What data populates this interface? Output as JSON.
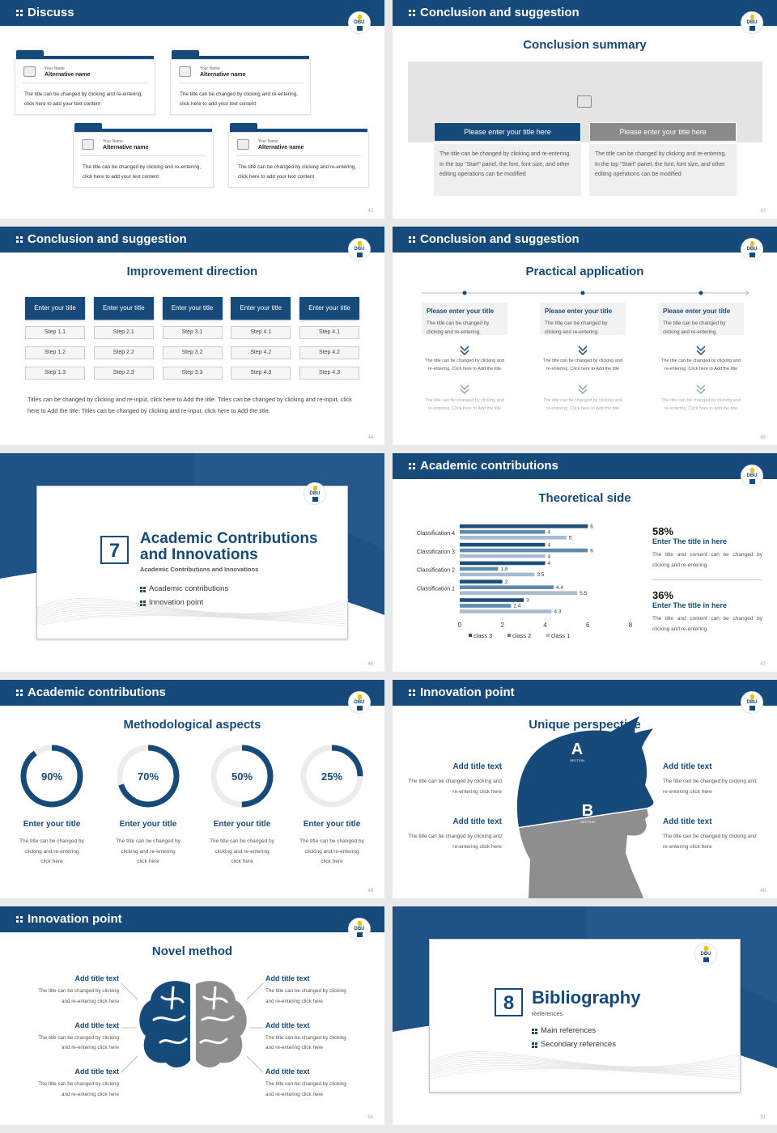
{
  "logo": "DBU",
  "chart_data": {
    "type": "bar",
    "categories": [
      "Classification 4",
      "Classification 3",
      "Classification 2",
      "Classification 1",
      null
    ],
    "series": [
      {
        "name": "class 3",
        "color": "#1f4e79",
        "values": [
          6,
          4,
          4,
          2,
          3
        ]
      },
      {
        "name": "class 2",
        "color": "#5d8aae",
        "values": [
          4,
          6,
          1.8,
          4.4,
          2.4
        ]
      },
      {
        "name": "class 1",
        "color": "#a7bccf",
        "values": [
          5,
          4,
          3.5,
          5.5,
          4.3
        ]
      }
    ],
    "xlim": [
      0,
      8
    ],
    "xticks": [
      0,
      2,
      4,
      6,
      8
    ]
  },
  "slides": [
    {
      "header": "Discuss",
      "cards": [
        {
          "label": "Your Name",
          "name": "Alternative name",
          "text": "The title can be changed by clicking and re-entering, click here to add your text content"
        },
        {
          "label": "Your Name",
          "name": "Alternative name",
          "text": "The title can be changed by clicking and re-entering, click here to add your text content"
        },
        {
          "label": "Your Name",
          "name": "Alternative name",
          "text": "The title can be changed by clicking and re-entering, click here to add your text content"
        },
        {
          "label": "Your Name",
          "name": "Alternative name",
          "text": "The title can be changed by clicking and re-entering, click here to add your text content"
        }
      ],
      "page": "42"
    },
    {
      "header": "Conclusion and suggestion",
      "title": "Conclusion summary",
      "boxes": [
        {
          "label": "Please enter your title here",
          "text": "The title can be changed by clicking and re-entering. In the top \"Start\" panel, the font, font size, and other editing operations can be modified"
        },
        {
          "label": "Please enter your title here",
          "text": "The title can be changed by clicking and re-entering. In the top \"Start\" panel, the font, font size, and other editing operations can be modified"
        }
      ],
      "page": "43"
    },
    {
      "header": "Conclusion and suggestion",
      "title": "Improvement direction",
      "columns": [
        {
          "head": "Enter your title",
          "steps": [
            "Step 1.1",
            "Step 1.2",
            "Step 1.3"
          ]
        },
        {
          "head": "Enter your title",
          "steps": [
            "Step 2.1",
            "Step 2.2",
            "Step 2.3"
          ]
        },
        {
          "head": "Enter your title",
          "steps": [
            "Step 3.1",
            "Step 3.2",
            "Step 3.3"
          ]
        },
        {
          "head": "Enter your title",
          "steps": [
            "Step 4.1",
            "Step 4.2",
            "Step 4.3"
          ]
        },
        {
          "head": "Enter your title",
          "steps": [
            "Step 4.1",
            "Step 4.2",
            "Step 4.3"
          ]
        }
      ],
      "note": "Titles can be changed by clicking and re-input, click here to Add the title. Titles can be changed by clicking and re-input, click here to Add the title. Titles can be changed by clicking and re-input, click here to Add the title.",
      "page": "44"
    },
    {
      "header": "Conclusion and suggestion",
      "title": "Practical application",
      "items": [
        {
          "head": "Please enter your title",
          "text": "The title can be changed by clicking and re-entering.",
          "details": [
            "The title can be changed by clicking and re-entering. Click here to Add the title",
            "The title can be changed by clicking and re-entering. Click here to Add the title"
          ]
        },
        {
          "head": "Please enter your title",
          "text": "The title can be changed by clicking and re-entering.",
          "details": [
            "The title can be changed by clicking and re-entering. Click here to Add the title",
            "The title can be changed by clicking and re-entering. Click here to Add the title"
          ]
        },
        {
          "head": "Please enter your title",
          "text": "The title can be changed by clicking and re-entering.",
          "details": [
            "The title can be changed by clicking and re-entering. Click here to Add the title",
            "The title can be changed by clicking and re-entering. Click here to Add the title"
          ]
        }
      ],
      "page": "45"
    },
    {
      "number": "7",
      "title": "Academic Contributions and Innovations",
      "subtitle": "Academic Contributions and Innovations",
      "items": [
        "Academic contributions",
        "Innovation point"
      ],
      "page": "46"
    },
    {
      "header": "Academic contributions",
      "title": "Theoretical side",
      "stats": [
        {
          "value": "58%",
          "title": "Enter The title in here",
          "text": "The title and content can be changed by clicking and re-entering."
        },
        {
          "value": "36%",
          "title": "Enter The title in here",
          "text": "The title and content can be changed by clicking and re-entering."
        }
      ],
      "page": "47"
    },
    {
      "header": "Academic contributions",
      "title": "Methodological aspects",
      "rings": [
        {
          "percent": 90,
          "label": "90%",
          "title": "Enter your title",
          "text": "The title can be changed by clicking and re-entering click here"
        },
        {
          "percent": 70,
          "label": "70%",
          "title": "Enter your title",
          "text": "The title can be changed by clicking and re-entering click here"
        },
        {
          "percent": 50,
          "label": "50%",
          "title": "Enter your title",
          "text": "The title can be changed by clicking and re-entering click here"
        },
        {
          "percent": 25,
          "label": "25%",
          "title": "Enter your title",
          "text": "The title can be changed by clicking and re-entering click here"
        }
      ],
      "page": "48"
    },
    {
      "header": "Innovation point",
      "title": "Unique perspective",
      "sections": [
        {
          "letter": "A",
          "label": "SECTION"
        },
        {
          "letter": "B",
          "label": "SECTION"
        }
      ],
      "items": [
        {
          "title": "Add title text",
          "text": "The title can be changed by clicking and re-entering click here"
        },
        {
          "title": "Add title text",
          "text": "The title can be changed by clicking and re-entering click here"
        },
        {
          "title": "Add title text",
          "text": "The title can be changed by clicking and re-entering click here"
        },
        {
          "title": "Add title text",
          "text": "The title can be changed by clicking and re-entering click here"
        }
      ],
      "page": "49"
    },
    {
      "header": "Innovation point",
      "title": "Novel method",
      "items": [
        {
          "title": "Add title text",
          "text": "The title can be changed by clicking and re-entering click here"
        },
        {
          "title": "Add title text",
          "text": "The title can be changed by clicking and re-entering click here"
        },
        {
          "title": "Add title text",
          "text": "The title can be changed by clicking and re-entering click here"
        },
        {
          "title": "Add title text",
          "text": "The title can be changed by clicking and re-entering click here"
        },
        {
          "title": "Add title text",
          "text": "The title can be changed by clicking and re-entering click here"
        },
        {
          "title": "Add title text",
          "text": "The title can be changed by clicking and re-entering click here"
        }
      ],
      "page": "50"
    },
    {
      "number": "8",
      "title": "Bibliography",
      "subtitle": "References",
      "items": [
        "Main references",
        "Secondary references"
      ],
      "page": "51"
    }
  ]
}
